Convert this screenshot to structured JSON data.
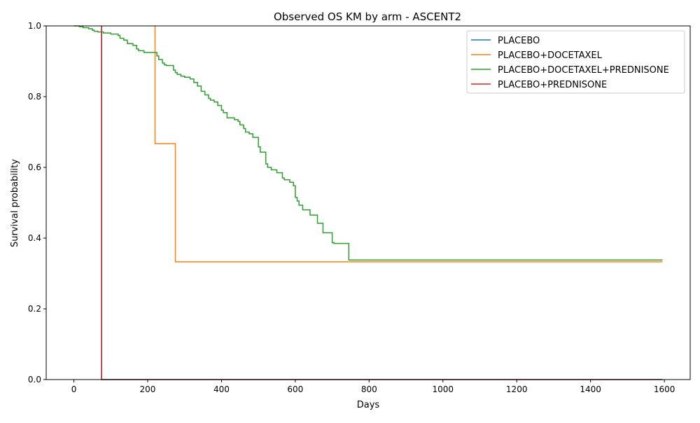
{
  "chart_data": {
    "type": "line",
    "step": true,
    "title": "Observed OS KM by arm - ASCENT2",
    "xlabel": "Days",
    "ylabel": "Survival probability",
    "xlim": [
      -75,
      1670
    ],
    "ylim": [
      0.0,
      1.0
    ],
    "xticks": [
      0,
      200,
      400,
      600,
      800,
      1000,
      1200,
      1400,
      1600
    ],
    "yticks": [
      0.0,
      0.2,
      0.4,
      0.6,
      0.8,
      1.0
    ],
    "xtick_labels": [
      "0",
      "200",
      "400",
      "600",
      "800",
      "1000",
      "1200",
      "1400",
      "1600"
    ],
    "ytick_labels": [
      "0.0",
      "0.2",
      "0.4",
      "0.6",
      "0.8",
      "1.0"
    ],
    "grid": false,
    "legend_position": "top-right",
    "series": [
      {
        "name": "PLACEBO",
        "color": "#1f77b4",
        "x": [
          75,
          75,
          1595
        ],
        "y": [
          1.0,
          0.0,
          0.0
        ]
      },
      {
        "name": "PLACEBO+DOCETAXEL",
        "color": "#ff7f0e",
        "x": [
          220,
          220,
          275,
          275,
          1595
        ],
        "y": [
          1.0,
          0.667,
          0.667,
          0.333,
          0.333
        ]
      },
      {
        "name": "PLACEBO+DOCETAXEL+PREDNISONE",
        "color": "#2ca02c",
        "x": [
          0,
          15,
          25,
          40,
          50,
          55,
          65,
          80,
          100,
          120,
          125,
          135,
          145,
          160,
          170,
          175,
          190,
          225,
          230,
          240,
          245,
          250,
          270,
          275,
          280,
          290,
          300,
          315,
          325,
          335,
          345,
          355,
          365,
          370,
          380,
          390,
          400,
          405,
          415,
          435,
          445,
          450,
          460,
          465,
          475,
          485,
          500,
          505,
          520,
          525,
          535,
          550,
          565,
          570,
          585,
          595,
          600,
          605,
          610,
          620,
          640,
          660,
          675,
          700,
          705,
          745,
          1595
        ],
        "y": [
          1.0,
          0.998,
          0.995,
          0.992,
          0.988,
          0.985,
          0.983,
          0.98,
          0.977,
          0.973,
          0.965,
          0.96,
          0.95,
          0.945,
          0.935,
          0.93,
          0.925,
          0.915,
          0.905,
          0.895,
          0.89,
          0.888,
          0.875,
          0.868,
          0.863,
          0.858,
          0.855,
          0.85,
          0.84,
          0.83,
          0.815,
          0.805,
          0.795,
          0.79,
          0.785,
          0.775,
          0.762,
          0.755,
          0.74,
          0.735,
          0.73,
          0.72,
          0.71,
          0.7,
          0.695,
          0.685,
          0.658,
          0.643,
          0.61,
          0.6,
          0.593,
          0.585,
          0.57,
          0.565,
          0.558,
          0.548,
          0.515,
          0.505,
          0.493,
          0.48,
          0.465,
          0.442,
          0.415,
          0.387,
          0.385,
          0.338,
          0.338
        ]
      },
      {
        "name": "PLACEBO+PREDNISONE",
        "color": "#d62728",
        "x": [
          75,
          75,
          1595
        ],
        "y": [
          1.0,
          0.0,
          0.0
        ]
      }
    ]
  }
}
